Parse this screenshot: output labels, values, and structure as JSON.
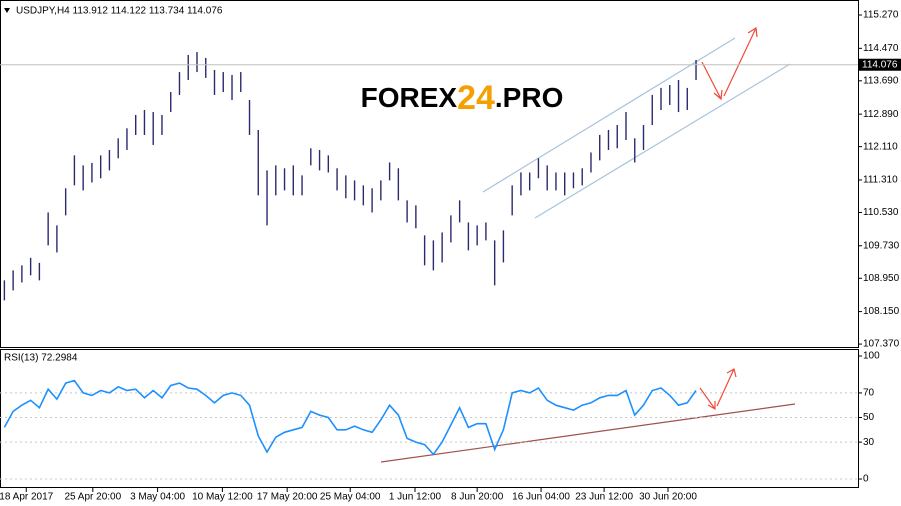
{
  "chart_data": [
    {
      "type": "ohlc",
      "title": "USDJPY,H4  113.912 114.122 113.734 114.076",
      "color": "#2a2a6e",
      "watermark": [
        "FOREX",
        "24",
        ".PRO"
      ],
      "current_price": 114.076,
      "xlim": [
        0,
        98
      ],
      "ylim": [
        107.3,
        115.63
      ],
      "yticks": [
        {
          "value": 115.27,
          "label": "115.270"
        },
        {
          "value": 114.47,
          "label": "114.470"
        },
        {
          "value": 113.69,
          "label": "113.690"
        },
        {
          "value": 112.89,
          "label": "112.890"
        },
        {
          "value": 112.11,
          "label": "112.110"
        },
        {
          "value": 111.31,
          "label": "111.310"
        },
        {
          "value": 110.53,
          "label": "110.530"
        },
        {
          "value": 109.73,
          "label": "109.730"
        },
        {
          "value": 108.95,
          "label": "108.950"
        },
        {
          "value": 108.15,
          "label": "108.150"
        },
        {
          "value": 107.37,
          "label": "107.370"
        }
      ],
      "high": [
        108.9,
        109.14,
        109.26,
        109.44,
        109.32,
        110.53,
        110.22,
        111.11,
        111.9,
        111.66,
        111.72,
        111.9,
        112.03,
        112.31,
        112.55,
        112.87,
        112.99,
        112.94,
        112.87,
        113.42,
        113.9,
        114.31,
        114.38,
        114.24,
        113.95,
        113.9,
        113.83,
        113.9,
        113.23,
        112.51,
        111.54,
        111.66,
        111.59,
        111.66,
        111.42,
        112.07,
        112.03,
        111.9,
        111.59,
        111.42,
        111.3,
        111.18,
        111.11,
        111.3,
        111.73,
        111.59,
        110.82,
        110.7,
        109.98,
        109.86,
        110.05,
        110.46,
        110.82,
        110.29,
        110.22,
        110.29,
        109.86,
        110.1,
        111.18,
        111.49,
        111.49,
        111.83,
        111.66,
        111.49,
        111.49,
        111.49,
        111.59,
        111.97,
        112.39,
        112.51,
        112.63,
        112.94,
        112.31,
        112.63,
        113.35,
        113.52,
        113.59,
        113.71,
        113.52,
        114.19
      ],
      "low": [
        108.42,
        108.66,
        108.85,
        109.02,
        108.9,
        109.74,
        109.57,
        110.46,
        111.18,
        111.06,
        111.25,
        111.35,
        111.54,
        111.83,
        112.03,
        112.39,
        112.39,
        112.15,
        112.39,
        112.94,
        113.35,
        113.71,
        113.9,
        113.76,
        113.35,
        113.42,
        113.23,
        113.42,
        112.39,
        110.94,
        110.22,
        110.94,
        111.06,
        110.94,
        110.94,
        111.66,
        111.54,
        111.49,
        111.06,
        110.87,
        110.82,
        110.7,
        110.53,
        110.82,
        111.3,
        110.82,
        110.29,
        110.15,
        109.26,
        109.14,
        109.33,
        109.81,
        110.29,
        109.62,
        109.74,
        109.86,
        108.78,
        109.33,
        110.46,
        110.94,
        111.06,
        111.35,
        111.06,
        111.06,
        110.94,
        111.11,
        111.18,
        111.49,
        111.78,
        112.03,
        112.07,
        112.27,
        111.73,
        112.03,
        112.63,
        112.99,
        113.11,
        112.94,
        112.99,
        113.71
      ]
    },
    {
      "type": "line",
      "title": "RSI(13) 72.2984",
      "color": "#1e90ff",
      "xlim": [
        0,
        98
      ],
      "ylim": [
        -7.3,
        104.9
      ],
      "yticks": [
        100,
        70,
        50,
        30,
        0
      ],
      "xticks": [
        {
          "value": 3,
          "label": "18 Apr 2017"
        },
        {
          "value": 10.6,
          "label": "25 Apr 20:00"
        },
        {
          "value": 18,
          "label": "3 May 04:00"
        },
        {
          "value": 25.4,
          "label": "10 May 12:00"
        },
        {
          "value": 32.8,
          "label": "17 May 20:00"
        },
        {
          "value": 40,
          "label": "25 May 04:00"
        },
        {
          "value": 47.4,
          "label": "1 Jun 12:00"
        },
        {
          "value": 54.5,
          "label": "8 Jun 20:00"
        },
        {
          "value": 61.8,
          "label": "16 Jun 04:00"
        },
        {
          "value": 69,
          "label": "23 Jun 12:00"
        },
        {
          "value": 76.3,
          "label": "30 Jun 20:00"
        }
      ],
      "values": [
        42,
        55,
        60,
        64,
        58,
        73,
        65,
        78,
        80,
        70,
        68,
        72,
        70,
        75,
        72,
        73,
        66,
        72,
        66,
        76,
        78,
        74,
        73,
        68,
        62,
        68,
        70,
        68,
        60,
        35,
        22,
        34,
        38,
        40,
        42,
        55,
        52,
        50,
        40,
        40,
        43,
        40,
        38,
        48,
        60,
        52,
        33,
        30,
        28,
        20,
        30,
        44,
        58,
        42,
        45,
        45,
        24,
        40,
        70,
        72,
        70,
        74,
        64,
        60,
        58,
        56,
        60,
        62,
        66,
        68,
        68,
        72,
        52,
        60,
        72,
        74,
        68,
        60,
        62,
        72
      ]
    }
  ]
}
